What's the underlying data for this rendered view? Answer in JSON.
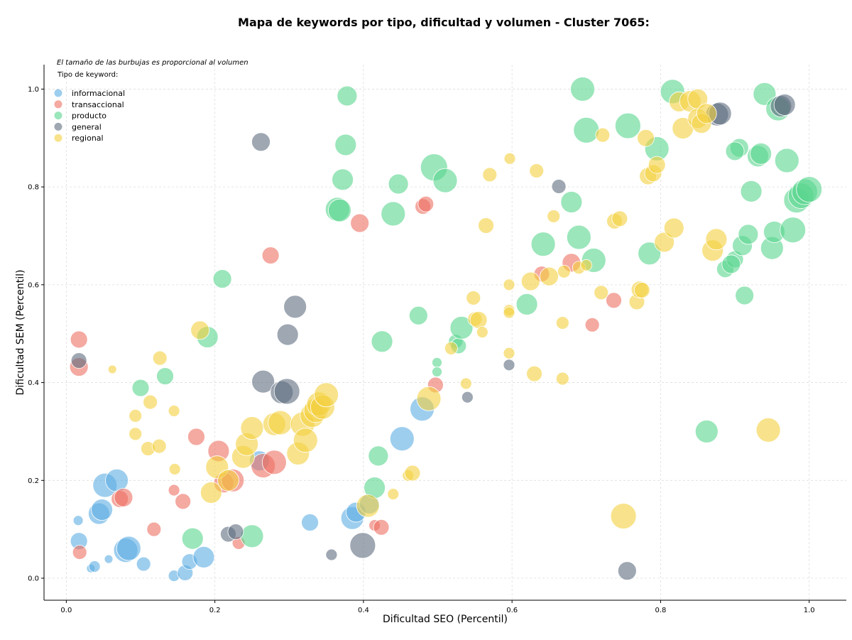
{
  "chart_data": {
    "type": "scatter",
    "title": "Mapa de keywords por tipo, dificultad y volumen - Cluster 7065:",
    "xlabel": "Dificultad SEO (Percentil)",
    "ylabel": "Dificultad SEM (Percentil)",
    "xlim": [
      -0.03,
      1.05
    ],
    "ylim": [
      -0.045,
      1.05
    ],
    "xticks": [
      "0.0",
      "0.2",
      "0.4",
      "0.6",
      "0.8",
      "1.0"
    ],
    "yticks": [
      "0.0",
      "0.2",
      "0.4",
      "0.6",
      "0.8",
      "1.0"
    ],
    "grid": true,
    "size_note": "El tamaño de las burbujas es proporcional al volumen",
    "legend_title": "Tipo de keyword:",
    "legend_position": "top-left",
    "series": [
      {
        "name": "informacional",
        "color": "#5dade2",
        "points": [
          [
            0.016,
            0.118,
            7
          ],
          [
            0.017,
            0.076,
            12
          ],
          [
            0.033,
            0.02,
            6
          ],
          [
            0.038,
            0.024,
            8
          ],
          [
            0.044,
            0.132,
            15
          ],
          [
            0.048,
            0.14,
            15
          ],
          [
            0.052,
            0.19,
            17
          ],
          [
            0.057,
            0.039,
            6
          ],
          [
            0.068,
            0.2,
            16
          ],
          [
            0.08,
            0.057,
            17
          ],
          [
            0.084,
            0.061,
            17
          ],
          [
            0.104,
            0.029,
            10
          ],
          [
            0.145,
            0.005,
            8
          ],
          [
            0.16,
            0.011,
            11
          ],
          [
            0.166,
            0.034,
            11
          ],
          [
            0.185,
            0.043,
            15
          ],
          [
            0.26,
            0.24,
            14
          ],
          [
            0.328,
            0.114,
            12
          ],
          [
            0.385,
            0.123,
            16
          ],
          [
            0.39,
            0.135,
            14
          ],
          [
            0.408,
            0.152,
            14
          ],
          [
            0.452,
            0.285,
            17
          ],
          [
            0.479,
            0.346,
            17
          ]
        ]
      },
      {
        "name": "transaccional",
        "color": "#ec7063",
        "points": [
          [
            0.017,
            0.488,
            12
          ],
          [
            0.017,
            0.432,
            13
          ],
          [
            0.018,
            0.053,
            10
          ],
          [
            0.072,
            0.162,
            12
          ],
          [
            0.077,
            0.165,
            13
          ],
          [
            0.118,
            0.1,
            10
          ],
          [
            0.145,
            0.18,
            8
          ],
          [
            0.157,
            0.157,
            11
          ],
          [
            0.175,
            0.289,
            12
          ],
          [
            0.205,
            0.26,
            15
          ],
          [
            0.212,
            0.195,
            14
          ],
          [
            0.224,
            0.2,
            16
          ],
          [
            0.232,
            0.072,
            9
          ],
          [
            0.265,
            0.23,
            17
          ],
          [
            0.275,
            0.66,
            12
          ],
          [
            0.28,
            0.237,
            17
          ],
          [
            0.395,
            0.726,
            13
          ],
          [
            0.415,
            0.108,
            8
          ],
          [
            0.424,
            0.104,
            11
          ],
          [
            0.48,
            0.76,
            11
          ],
          [
            0.484,
            0.765,
            11
          ],
          [
            0.497,
            0.395,
            11
          ],
          [
            0.64,
            0.622,
            11
          ],
          [
            0.68,
            0.645,
            13
          ],
          [
            0.708,
            0.518,
            10
          ],
          [
            0.737,
            0.568,
            11
          ]
        ]
      },
      {
        "name": "producto",
        "color": "#58d68d",
        "points": [
          [
            0.1,
            0.389,
            12
          ],
          [
            0.133,
            0.413,
            12
          ],
          [
            0.17,
            0.081,
            15
          ],
          [
            0.19,
            0.493,
            15
          ],
          [
            0.21,
            0.612,
            13
          ],
          [
            0.25,
            0.086,
            16
          ],
          [
            0.365,
            0.754,
            17
          ],
          [
            0.368,
            0.752,
            16
          ],
          [
            0.372,
            0.815,
            15
          ],
          [
            0.376,
            0.886,
            15
          ],
          [
            0.378,
            0.986,
            14
          ],
          [
            0.415,
            0.185,
            15
          ],
          [
            0.42,
            0.25,
            14
          ],
          [
            0.425,
            0.484,
            15
          ],
          [
            0.44,
            0.745,
            17
          ],
          [
            0.447,
            0.806,
            14
          ],
          [
            0.474,
            0.537,
            13
          ],
          [
            0.495,
            0.84,
            19
          ],
          [
            0.51,
            0.813,
            17
          ],
          [
            0.499,
            0.441,
            7
          ],
          [
            0.499,
            0.422,
            7
          ],
          [
            0.524,
            0.484,
            10
          ],
          [
            0.528,
            0.475,
            11
          ],
          [
            0.532,
            0.512,
            16
          ],
          [
            0.62,
            0.56,
            15
          ],
          [
            0.642,
            0.683,
            17
          ],
          [
            0.68,
            0.769,
            15
          ],
          [
            0.69,
            0.697,
            17
          ],
          [
            0.695,
            1.0,
            17
          ],
          [
            0.7,
            0.916,
            18
          ],
          [
            0.71,
            0.65,
            17
          ],
          [
            0.756,
            0.925,
            18
          ],
          [
            0.785,
            0.664,
            16
          ],
          [
            0.795,
            0.878,
            17
          ],
          [
            0.816,
            0.995,
            17
          ],
          [
            0.862,
            0.3,
            16
          ],
          [
            0.887,
            0.632,
            12
          ],
          [
            0.9,
            0.652,
            12
          ],
          [
            0.895,
            0.642,
            13
          ],
          [
            0.906,
            0.88,
            13
          ],
          [
            0.9,
            0.873,
            13
          ],
          [
            0.91,
            0.68,
            14
          ],
          [
            0.913,
            0.578,
            13
          ],
          [
            0.918,
            0.703,
            14
          ],
          [
            0.922,
            0.791,
            15
          ],
          [
            0.931,
            0.863,
            15
          ],
          [
            0.935,
            0.868,
            15
          ],
          [
            0.94,
            0.99,
            16
          ],
          [
            0.95,
            0.675,
            16
          ],
          [
            0.953,
            0.708,
            15
          ],
          [
            0.958,
            0.96,
            17
          ],
          [
            0.97,
            0.854,
            17
          ],
          [
            0.978,
            0.712,
            18
          ],
          [
            0.983,
            0.773,
            18
          ],
          [
            0.989,
            0.782,
            18
          ],
          [
            0.994,
            0.79,
            18
          ],
          [
            1.0,
            0.795,
            18
          ]
        ]
      },
      {
        "name": "general",
        "color": "#5d6d7e",
        "points": [
          [
            0.017,
            0.445,
            11
          ],
          [
            0.218,
            0.09,
            11
          ],
          [
            0.228,
            0.095,
            11
          ],
          [
            0.262,
            0.892,
            13
          ],
          [
            0.265,
            0.402,
            16
          ],
          [
            0.29,
            0.38,
            16
          ],
          [
            0.297,
            0.382,
            18
          ],
          [
            0.298,
            0.498,
            15
          ],
          [
            0.308,
            0.555,
            16
          ],
          [
            0.357,
            0.048,
            8
          ],
          [
            0.399,
            0.067,
            18
          ],
          [
            0.54,
            0.37,
            8
          ],
          [
            0.596,
            0.436,
            8
          ],
          [
            0.663,
            0.801,
            10
          ],
          [
            0.755,
            0.015,
            13
          ],
          [
            0.876,
            0.948,
            16
          ],
          [
            0.88,
            0.95,
            16
          ],
          [
            0.962,
            0.965,
            15
          ],
          [
            0.967,
            0.968,
            15
          ]
        ]
      },
      {
        "name": "regional",
        "color": "#f4d03f",
        "points": [
          [
            0.062,
            0.427,
            6
          ],
          [
            0.093,
            0.332,
            9
          ],
          [
            0.093,
            0.295,
            9
          ],
          [
            0.11,
            0.265,
            10
          ],
          [
            0.113,
            0.36,
            10
          ],
          [
            0.125,
            0.27,
            10
          ],
          [
            0.126,
            0.45,
            10
          ],
          [
            0.145,
            0.342,
            8
          ],
          [
            0.146,
            0.223,
            8
          ],
          [
            0.18,
            0.507,
            13
          ],
          [
            0.195,
            0.175,
            15
          ],
          [
            0.203,
            0.227,
            16
          ],
          [
            0.218,
            0.2,
            15
          ],
          [
            0.238,
            0.248,
            16
          ],
          [
            0.243,
            0.274,
            16
          ],
          [
            0.25,
            0.307,
            16
          ],
          [
            0.28,
            0.315,
            16
          ],
          [
            0.288,
            0.318,
            17
          ],
          [
            0.312,
            0.255,
            16
          ],
          [
            0.318,
            0.315,
            17
          ],
          [
            0.322,
            0.282,
            17
          ],
          [
            0.331,
            0.333,
            17
          ],
          [
            0.336,
            0.343,
            17
          ],
          [
            0.34,
            0.356,
            17
          ],
          [
            0.345,
            0.35,
            17
          ],
          [
            0.35,
            0.375,
            17
          ],
          [
            0.406,
            0.148,
            16
          ],
          [
            0.44,
            0.172,
            8
          ],
          [
            0.46,
            0.21,
            8
          ],
          [
            0.466,
            0.215,
            11
          ],
          [
            0.488,
            0.367,
            17
          ],
          [
            0.518,
            0.47,
            9
          ],
          [
            0.538,
            0.398,
            8
          ],
          [
            0.548,
            0.573,
            10
          ],
          [
            0.55,
            0.53,
            10
          ],
          [
            0.555,
            0.528,
            12
          ],
          [
            0.56,
            0.503,
            8
          ],
          [
            0.565,
            0.721,
            11
          ],
          [
            0.57,
            0.825,
            10
          ],
          [
            0.596,
            0.6,
            8
          ],
          [
            0.596,
            0.548,
            8
          ],
          [
            0.596,
            0.46,
            8
          ],
          [
            0.596,
            0.543,
            8
          ],
          [
            0.597,
            0.858,
            8
          ],
          [
            0.625,
            0.607,
            13
          ],
          [
            0.63,
            0.418,
            11
          ],
          [
            0.633,
            0.833,
            10
          ],
          [
            0.65,
            0.617,
            13
          ],
          [
            0.656,
            0.74,
            9
          ],
          [
            0.668,
            0.522,
            9
          ],
          [
            0.668,
            0.408,
            9
          ],
          [
            0.67,
            0.627,
            9
          ],
          [
            0.69,
            0.635,
            9
          ],
          [
            0.7,
            0.64,
            8
          ],
          [
            0.72,
            0.584,
            10
          ],
          [
            0.722,
            0.906,
            10
          ],
          [
            0.738,
            0.73,
            11
          ],
          [
            0.745,
            0.735,
            11
          ],
          [
            0.75,
            0.127,
            18
          ],
          [
            0.768,
            0.565,
            11
          ],
          [
            0.772,
            0.59,
            12
          ],
          [
            0.775,
            0.589,
            11
          ],
          [
            0.78,
            0.9,
            12
          ],
          [
            0.783,
            0.822,
            12
          ],
          [
            0.79,
            0.828,
            12
          ],
          [
            0.795,
            0.845,
            12
          ],
          [
            0.805,
            0.687,
            14
          ],
          [
            0.818,
            0.716,
            14
          ],
          [
            0.825,
            0.974,
            14
          ],
          [
            0.83,
            0.92,
            15
          ],
          [
            0.84,
            0.975,
            15
          ],
          [
            0.85,
            0.98,
            14
          ],
          [
            0.85,
            0.94,
            14
          ],
          [
            0.855,
            0.93,
            14
          ],
          [
            0.862,
            0.95,
            14
          ],
          [
            0.87,
            0.67,
            15
          ],
          [
            0.875,
            0.693,
            15
          ],
          [
            0.945,
            0.303,
            17
          ]
        ]
      }
    ]
  }
}
